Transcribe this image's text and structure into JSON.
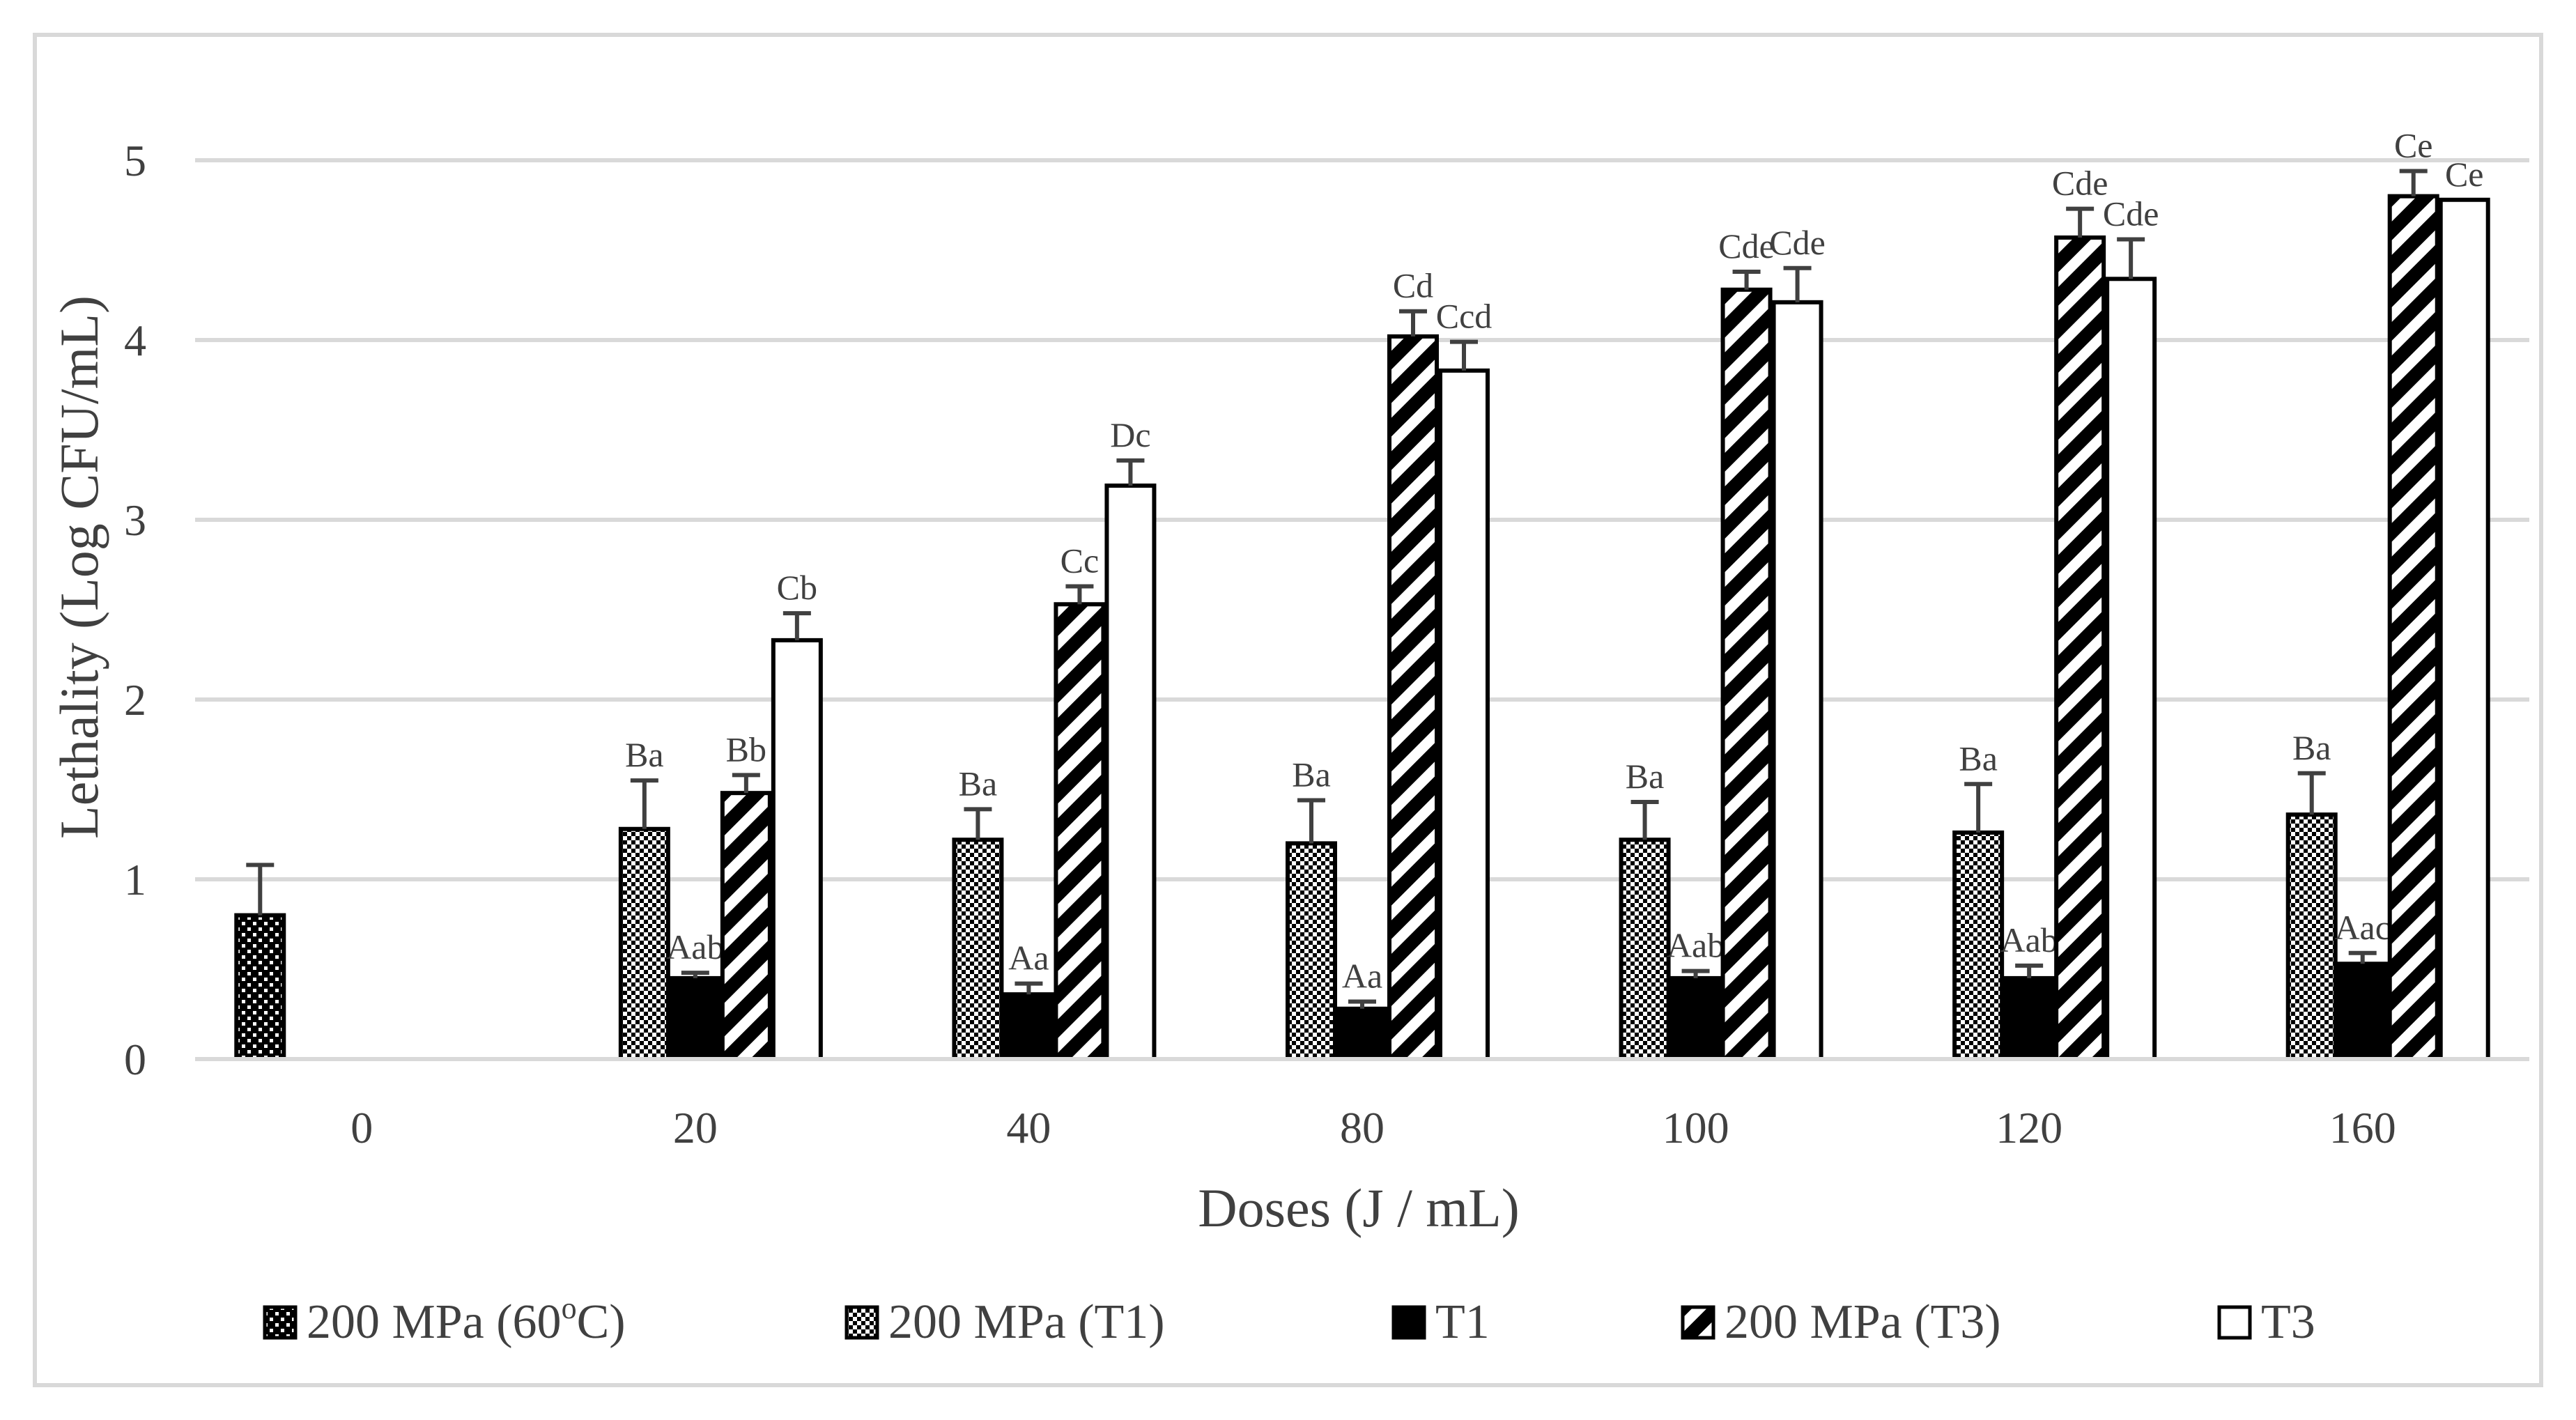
{
  "chart_data": {
    "type": "bar",
    "title": "",
    "xlabel": "Doses (J / mL)",
    "ylabel": "Lethality (Log CFU/mL)",
    "ylim": [
      0,
      5
    ],
    "yticks": [
      "0",
      "1",
      "2",
      "3",
      "4",
      "5"
    ],
    "grid": true,
    "legend_position": "bottom",
    "categories": [
      "0",
      "20",
      "40",
      "80",
      "100",
      "120",
      "160"
    ],
    "series": [
      {
        "name": "200 MPa (60°C)",
        "legend_label": "200 MPa (60",
        "legend_sup": "o",
        "legend_suffix": "C)",
        "pattern": "dots",
        "values": [
          0.8,
          null,
          null,
          null,
          null,
          null,
          null
        ],
        "errors": [
          0.28,
          null,
          null,
          null,
          null,
          null,
          null
        ],
        "labels": [
          "",
          "",
          "",
          "",
          "",
          "",
          ""
        ]
      },
      {
        "name": "200 MPa (T1)",
        "legend_label": "200 MPa (T1)",
        "pattern": "checker",
        "values": [
          null,
          1.28,
          1.22,
          1.2,
          1.22,
          1.26,
          1.36
        ],
        "errors": [
          null,
          0.27,
          0.17,
          0.24,
          0.21,
          0.27,
          0.23
        ],
        "labels": [
          "",
          "Ba",
          "Ba",
          "Ba",
          "Ba",
          "Ba",
          "Ba"
        ]
      },
      {
        "name": "T1",
        "legend_label": "T1",
        "pattern": "solid",
        "values": [
          null,
          0.45,
          0.36,
          0.28,
          0.45,
          0.45,
          0.53
        ],
        "errors": [
          null,
          0.03,
          0.06,
          0.04,
          0.04,
          0.07,
          0.06
        ],
        "labels": [
          "",
          "Aab",
          "Aa",
          "Aa",
          "Aab",
          "Aab",
          "Aac"
        ]
      },
      {
        "name": "200 MPa (T3)",
        "legend_label": "200 MPa (T3)",
        "pattern": "diagonal",
        "values": [
          null,
          1.48,
          2.53,
          4.02,
          4.28,
          4.57,
          4.8
        ],
        "errors": [
          null,
          0.1,
          0.1,
          0.14,
          0.1,
          0.16,
          0.14
        ],
        "labels": [
          "",
          "Bb",
          "Cc",
          "Cd",
          "Cde",
          "Cde",
          "Ce"
        ]
      },
      {
        "name": "T3",
        "legend_label": "T3",
        "pattern": "white",
        "values": [
          null,
          2.33,
          3.19,
          3.83,
          4.21,
          4.34,
          4.78
        ],
        "errors": [
          null,
          0.15,
          0.14,
          0.16,
          0.19,
          0.22,
          0
        ],
        "labels": [
          "",
          "Cb",
          "Dc",
          "Ccd",
          "Cde",
          "Cde",
          "Ce"
        ]
      }
    ]
  }
}
